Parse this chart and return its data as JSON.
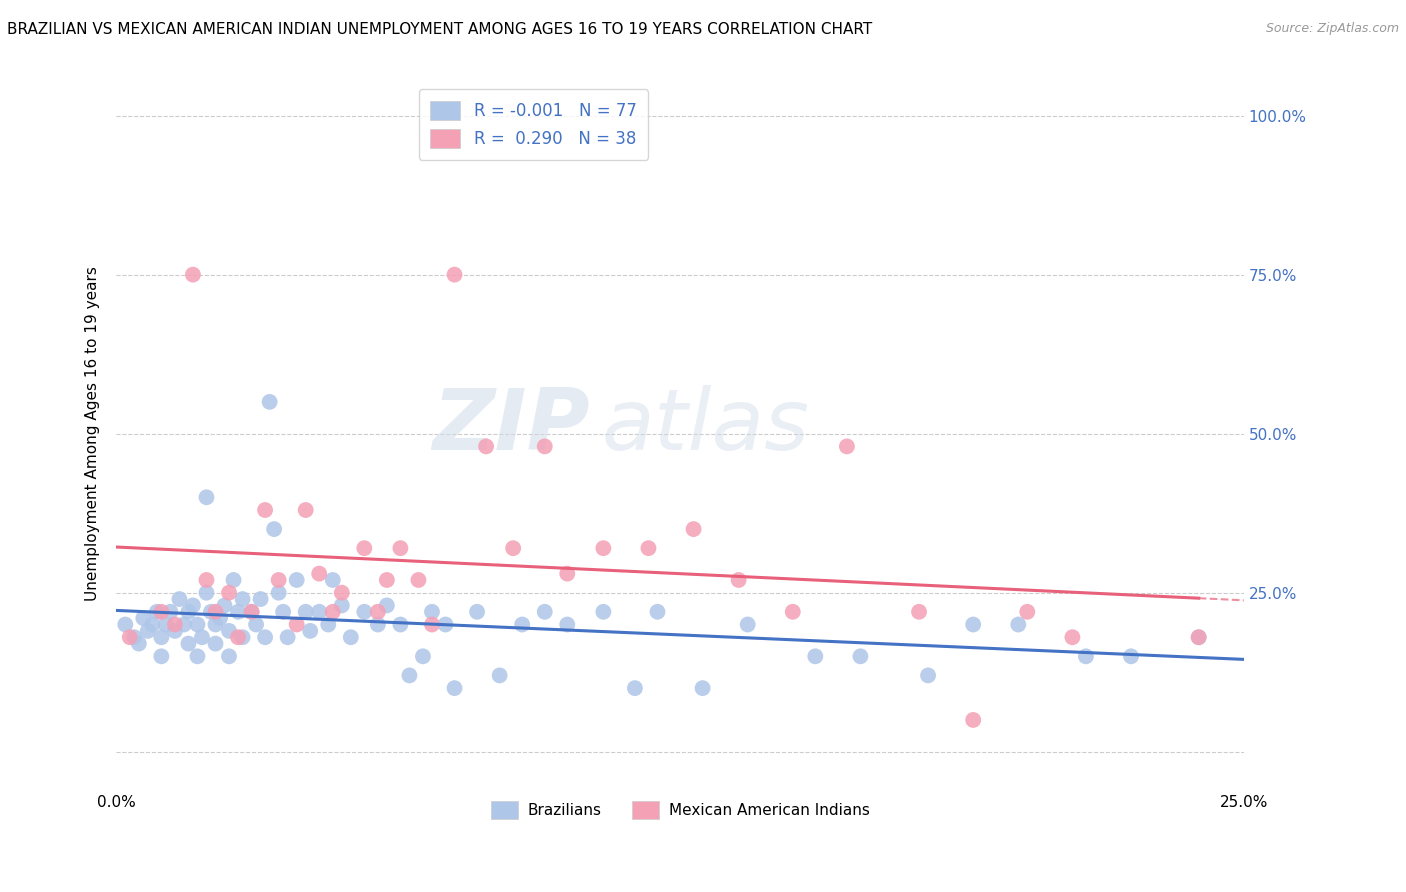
{
  "title": "BRAZILIAN VS MEXICAN AMERICAN INDIAN UNEMPLOYMENT AMONG AGES 16 TO 19 YEARS CORRELATION CHART",
  "source": "Source: ZipAtlas.com",
  "ylabel": "Unemployment Among Ages 16 to 19 years",
  "xmin": 0.0,
  "xmax": 0.25,
  "ymin": -0.06,
  "ymax": 1.06,
  "yticks": [
    0.0,
    0.25,
    0.5,
    0.75,
    1.0
  ],
  "ytick_labels_right": [
    "",
    "25.0%",
    "50.0%",
    "75.0%",
    "100.0%"
  ],
  "xticks": [
    0.0,
    0.05,
    0.1,
    0.15,
    0.2,
    0.25
  ],
  "xtick_labels": [
    "0.0%",
    "",
    "",
    "",
    "",
    "25.0%"
  ],
  "blue_scatter_color": "#aec6e8",
  "pink_scatter_color": "#f4a0b5",
  "blue_line_color": "#4472c4",
  "pink_line_color": "#e8607a",
  "right_axis_color": "#4472c4",
  "legend_line1": "R = -0.001   N = 77",
  "legend_line2": "R =  0.290   N = 38",
  "watermark_zip": "ZIP",
  "watermark_atlas": "atlas",
  "watermark_color": "#c5d5e5",
  "brazilians_x": [
    0.002,
    0.004,
    0.005,
    0.006,
    0.007,
    0.008,
    0.009,
    0.01,
    0.01,
    0.011,
    0.012,
    0.013,
    0.014,
    0.015,
    0.016,
    0.016,
    0.017,
    0.018,
    0.018,
    0.019,
    0.02,
    0.02,
    0.021,
    0.022,
    0.022,
    0.023,
    0.024,
    0.025,
    0.025,
    0.026,
    0.027,
    0.028,
    0.028,
    0.03,
    0.031,
    0.032,
    0.033,
    0.034,
    0.035,
    0.036,
    0.037,
    0.038,
    0.04,
    0.042,
    0.043,
    0.045,
    0.047,
    0.048,
    0.05,
    0.052,
    0.055,
    0.058,
    0.06,
    0.063,
    0.065,
    0.068,
    0.07,
    0.073,
    0.075,
    0.08,
    0.085,
    0.09,
    0.095,
    0.1,
    0.108,
    0.115,
    0.12,
    0.13,
    0.14,
    0.155,
    0.165,
    0.18,
    0.19,
    0.2,
    0.215,
    0.225,
    0.24
  ],
  "brazilians_y": [
    0.2,
    0.18,
    0.17,
    0.21,
    0.19,
    0.2,
    0.22,
    0.18,
    0.15,
    0.2,
    0.22,
    0.19,
    0.24,
    0.2,
    0.22,
    0.17,
    0.23,
    0.2,
    0.15,
    0.18,
    0.4,
    0.25,
    0.22,
    0.2,
    0.17,
    0.21,
    0.23,
    0.19,
    0.15,
    0.27,
    0.22,
    0.24,
    0.18,
    0.22,
    0.2,
    0.24,
    0.18,
    0.55,
    0.35,
    0.25,
    0.22,
    0.18,
    0.27,
    0.22,
    0.19,
    0.22,
    0.2,
    0.27,
    0.23,
    0.18,
    0.22,
    0.2,
    0.23,
    0.2,
    0.12,
    0.15,
    0.22,
    0.2,
    0.1,
    0.22,
    0.12,
    0.2,
    0.22,
    0.2,
    0.22,
    0.1,
    0.22,
    0.1,
    0.2,
    0.15,
    0.15,
    0.12,
    0.2,
    0.2,
    0.15,
    0.15,
    0.18
  ],
  "mexican_x": [
    0.003,
    0.01,
    0.013,
    0.017,
    0.02,
    0.022,
    0.025,
    0.027,
    0.03,
    0.033,
    0.036,
    0.04,
    0.042,
    0.045,
    0.048,
    0.05,
    0.055,
    0.058,
    0.06,
    0.063,
    0.067,
    0.07,
    0.075,
    0.082,
    0.088,
    0.095,
    0.1,
    0.108,
    0.118,
    0.128,
    0.138,
    0.15,
    0.162,
    0.178,
    0.19,
    0.202,
    0.212,
    0.24
  ],
  "mexican_y": [
    0.18,
    0.22,
    0.2,
    0.75,
    0.27,
    0.22,
    0.25,
    0.18,
    0.22,
    0.38,
    0.27,
    0.2,
    0.38,
    0.28,
    0.22,
    0.25,
    0.32,
    0.22,
    0.27,
    0.32,
    0.27,
    0.2,
    0.75,
    0.48,
    0.32,
    0.48,
    0.28,
    0.32,
    0.32,
    0.35,
    0.27,
    0.22,
    0.48,
    0.22,
    0.05,
    0.22,
    0.18,
    0.18
  ]
}
